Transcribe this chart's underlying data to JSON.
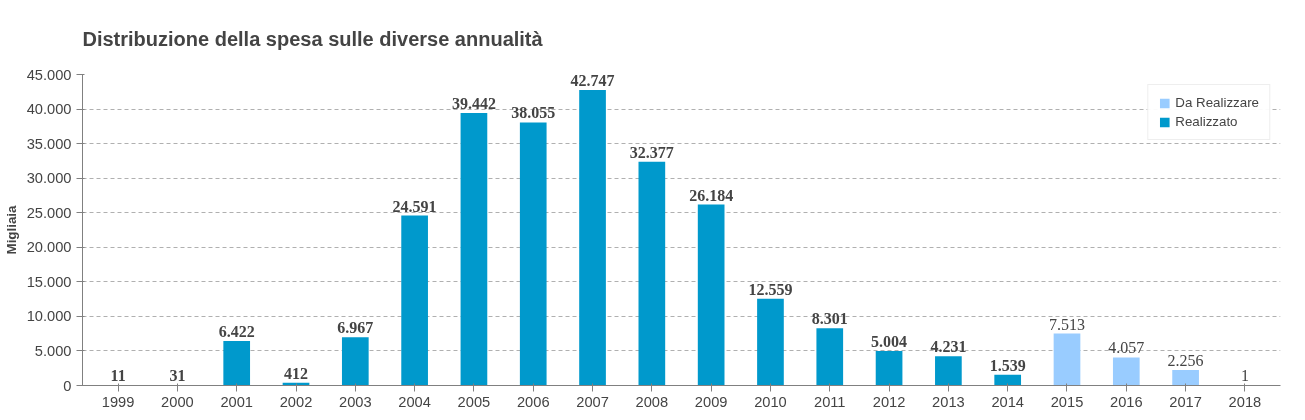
{
  "chart_data": {
    "type": "bar",
    "title": "Distribuzione della spesa sulle diverse annualità",
    "ylabel": "Migliaia",
    "categories": [
      "1999",
      "2000",
      "2001",
      "2002",
      "2003",
      "2004",
      "2005",
      "2006",
      "2007",
      "2008",
      "2009",
      "2010",
      "2011",
      "2012",
      "2013",
      "2014",
      "2015",
      "2016",
      "2017",
      "2018"
    ],
    "series": [
      {
        "name": "Da Realizzare",
        "color": "#99ccff",
        "values": [
          null,
          null,
          null,
          null,
          null,
          null,
          null,
          null,
          null,
          null,
          null,
          null,
          null,
          null,
          null,
          null,
          7513,
          4057,
          2256,
          1
        ],
        "value_labels": [
          null,
          null,
          null,
          null,
          null,
          null,
          null,
          null,
          null,
          null,
          null,
          null,
          null,
          null,
          null,
          null,
          "7.513",
          "4.057",
          "2.256",
          "1"
        ]
      },
      {
        "name": "Realizzato",
        "color": "#0099cc",
        "values": [
          11,
          31,
          6422,
          412,
          6967,
          24591,
          39442,
          38055,
          42747,
          32377,
          26184,
          12559,
          8301,
          5004,
          4231,
          1539,
          null,
          null,
          null,
          null
        ],
        "value_labels": [
          "11",
          "31",
          "6.422",
          "412",
          "6.967",
          "24.591",
          "39.442",
          "38.055",
          "42.747",
          "32.377",
          "26.184",
          "12.559",
          "8.301",
          "5.004",
          "4.231",
          "1.539",
          null,
          null,
          null,
          null
        ]
      }
    ],
    "ylim": [
      0,
      45000
    ],
    "yticks": [
      0,
      {
        "value": 5000,
        "label": "5.000"
      },
      {
        "value": 10000,
        "label": "10.000"
      },
      {
        "value": 15000,
        "label": "15.000"
      },
      {
        "value": 20000,
        "label": "20.000"
      },
      {
        "value": 25000,
        "label": "25.000"
      },
      {
        "value": 30000,
        "label": "30.000"
      },
      {
        "value": 35000,
        "label": "35.000"
      },
      {
        "value": 40000,
        "label": "40.000"
      },
      {
        "value": 45000,
        "label": "45.000"
      }
    ],
    "grid": "y",
    "legend": "top right"
  }
}
